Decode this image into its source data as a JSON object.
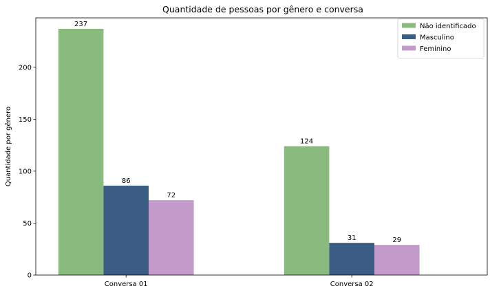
{
  "chart_data": {
    "type": "bar",
    "title": "Quantidade de pessoas por gênero e conversa",
    "xlabel": "",
    "ylabel": "Quantidade por gênero",
    "categories": [
      "Conversa 01",
      "Conversa 02"
    ],
    "series": [
      {
        "name": "Não identificado",
        "values": [
          237,
          124
        ],
        "color": "#89ba7e"
      },
      {
        "name": "Masculino",
        "values": [
          86,
          31
        ],
        "color": "#3b5d84"
      },
      {
        "name": "Feminino",
        "values": [
          72,
          29
        ],
        "color": "#c39bcb"
      }
    ],
    "ylim": [
      0,
      247.5
    ],
    "yticks": [
      0,
      50,
      100,
      150,
      200
    ],
    "grid": false,
    "legend": "top-right",
    "data_labels": true
  }
}
